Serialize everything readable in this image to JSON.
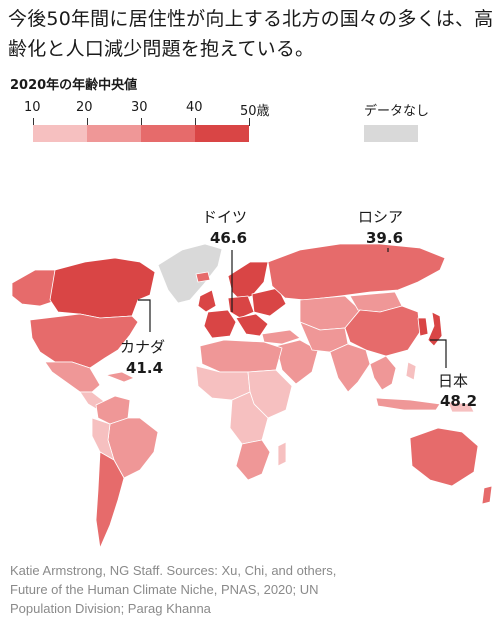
{
  "title": "今後50年間に居住性が向上する北方の国々の多くは、高齢化と人口減少問題を抱えている。",
  "legend": {
    "title": "2020年の年齢中央値",
    "ticks": [
      "10",
      "20",
      "30",
      "40",
      "50歳"
    ],
    "bins": [
      {
        "range": "10–20",
        "color": "#f6c0c0"
      },
      {
        "range": "20–30",
        "color": "#ef9797"
      },
      {
        "range": "30–40",
        "color": "#e66b6b"
      },
      {
        "range": "40–50",
        "color": "#d94545"
      }
    ],
    "no_data_label": "データなし",
    "no_data_color": "#d9d9d9"
  },
  "callouts": [
    {
      "name": "ドイツ",
      "value": "46.6"
    },
    {
      "name": "ロシア",
      "value": "39.6"
    },
    {
      "name": "カナダ",
      "value": "41.4"
    },
    {
      "name": "日本",
      "value": "48.2"
    }
  ],
  "credit": "Katie Armstrong, NG Staff. Sources: Xu, Chi, and others, Future of the Human Climate Niche, PNAS, 2020; UN Population Division; Parag Khanna"
}
